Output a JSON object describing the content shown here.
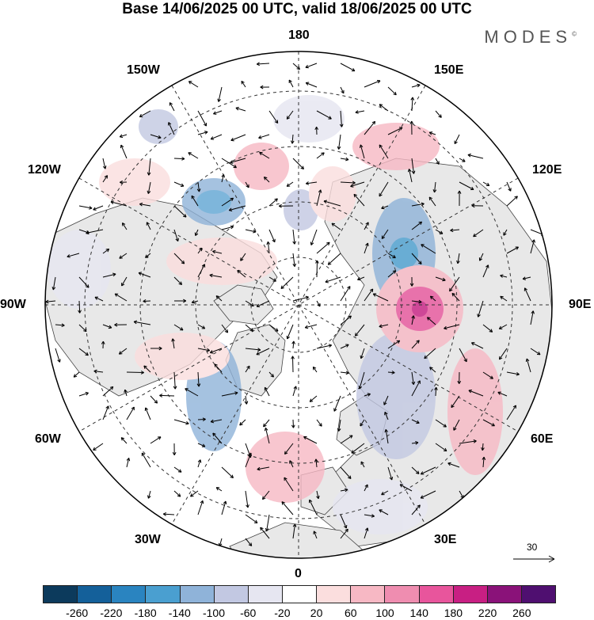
{
  "title": "Base 14/06/2025 00 UTC, valid 18/06/2025 00 UTC",
  "brand": "MODES",
  "brand_mark": "©",
  "longitude_labels": {
    "top": "180",
    "bottom": "0",
    "left": "90W",
    "right": "90E",
    "top_left": "150W",
    "top_right": "150E",
    "upper_left": "120W",
    "upper_right": "120E",
    "lower_left": "60W",
    "lower_right": "60E",
    "bottom_left": "30W",
    "bottom_right": "30E"
  },
  "reference_vector": "30",
  "colorbar": {
    "colors": [
      "#0c3a5c",
      "#14609a",
      "#2a84c0",
      "#4a9fd0",
      "#8fb3d9",
      "#c2c8e2",
      "#e6e6f1",
      "#ffffff",
      "#fbdede",
      "#f7b8c4",
      "#ef8db0",
      "#e8559c",
      "#c81f83",
      "#8a1279",
      "#4f0f70"
    ],
    "ticks": [
      "-260",
      "-220",
      "-180",
      "-140",
      "-100",
      "-60",
      "-20",
      "20",
      "60",
      "100",
      "140",
      "180",
      "220",
      "260"
    ]
  }
}
